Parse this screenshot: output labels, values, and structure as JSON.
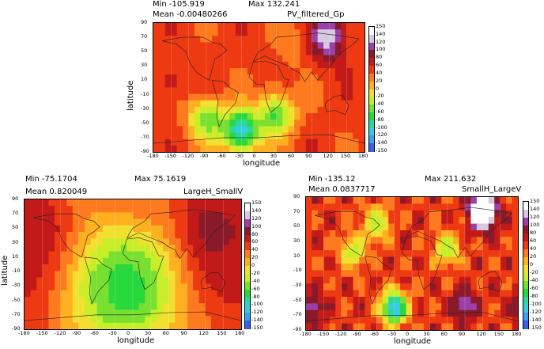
{
  "colorbar": {
    "ticks": [
      "150",
      "140",
      "120",
      "100",
      "80",
      "60",
      "40",
      "20",
      "0",
      "-20",
      "-40",
      "-60",
      "-80",
      "-100",
      "-120",
      "-140",
      "-150"
    ],
    "colors": [
      "#ffffff",
      "#d7c8e0",
      "#9b40a8",
      "#8a1a2a",
      "#c21a18",
      "#ee3a12",
      "#ff7a1e",
      "#ffb020",
      "#f2e030",
      "#c8ee2a",
      "#78e030",
      "#28d83c",
      "#2ad9a0",
      "#38cce0",
      "#3c9ef0",
      "#3a60e8"
    ]
  },
  "charts": [
    {
      "title": "PV_filtered_Gp",
      "min_text": "Min -105.919",
      "max_text": "Max 132.241",
      "mean_text": "Mean -0.00480266",
      "xlabel": "longitude",
      "ylabel": "latitude",
      "xticks": [
        "-180",
        "-150",
        "-120",
        "-90",
        "-60",
        "-30",
        "0",
        "30",
        "60",
        "90",
        "120",
        "150",
        "180"
      ],
      "yticks": [
        "90",
        "70",
        "50",
        "30",
        "10",
        "-10",
        "-30",
        "-50",
        "-70",
        "-90"
      ]
    },
    {
      "title": "LargeH_SmallV",
      "min_text": "Min -75.1704",
      "max_text": "Max 75.1619",
      "mean_text": "Mean 0.820049",
      "xlabel": "longitude",
      "ylabel": "latitude",
      "xticks": [
        "-180",
        "-150",
        "-120",
        "-90",
        "-60",
        "-30",
        "0",
        "30",
        "60",
        "90",
        "120",
        "150",
        "180"
      ],
      "yticks": [
        "90",
        "70",
        "50",
        "30",
        "10",
        "-10",
        "-30",
        "-50",
        "-70",
        "-90"
      ]
    },
    {
      "title": "SmallH_LargeV",
      "min_text": "Min -135.12",
      "max_text": "Max 211.632",
      "mean_text": "Mean 0.0837717",
      "xlabel": "longitude",
      "ylabel": "",
      "xticks": [
        "-180",
        "-150",
        "-120",
        "-90",
        "-60",
        "-30",
        "0",
        "30",
        "60",
        "90",
        "120",
        "150",
        "180"
      ],
      "yticks": [
        "90",
        "70",
        "50",
        "30",
        "10",
        "-10",
        "-30",
        "-50",
        "-70",
        "-90"
      ]
    }
  ],
  "chart_data": [
    {
      "type": "heatmap",
      "title": "PV_filtered_Gp",
      "xlabel": "longitude",
      "ylabel": "latitude",
      "xlim": [
        -180,
        180
      ],
      "ylim": [
        -90,
        90
      ],
      "zlim": [
        -150,
        150
      ],
      "stats": {
        "min": -105.919,
        "max": 132.241,
        "mean": -0.00480266
      },
      "features": [
        {
          "lon": 115,
          "lat": 70,
          "value": 130
        },
        {
          "lon": 60,
          "lat": 60,
          "value": 25
        },
        {
          "lon": -30,
          "lat": -60,
          "value": -100
        },
        {
          "lon": -90,
          "lat": -45,
          "value": -50
        },
        {
          "lon": 30,
          "lat": -40,
          "value": -55
        },
        {
          "lon": -150,
          "lat": 10,
          "value": 60
        },
        {
          "lon": 20,
          "lat": 20,
          "value": 45
        }
      ]
    },
    {
      "type": "heatmap",
      "title": "LargeH_SmallV",
      "xlabel": "longitude",
      "ylabel": "latitude",
      "xlim": [
        -180,
        180
      ],
      "ylim": [
        -90,
        90
      ],
      "zlim": [
        -150,
        150
      ],
      "stats": {
        "min": -75.1704,
        "max": 75.1619,
        "mean": 0.820049
      },
      "features": [
        {
          "lon": -10,
          "lat": -35,
          "value": -70
        },
        {
          "lon": 120,
          "lat": 60,
          "value": 70
        },
        {
          "lon": -150,
          "lat": 40,
          "value": 65
        },
        {
          "lon": 150,
          "lat": -10,
          "value": 60
        }
      ]
    },
    {
      "type": "heatmap",
      "title": "SmallH_LargeV",
      "xlabel": "longitude",
      "ylabel": "",
      "xlim": [
        -180,
        180
      ],
      "ylim": [
        -90,
        90
      ],
      "zlim": [
        -150,
        150
      ],
      "stats": {
        "min": -135.12,
        "max": 211.632,
        "mean": 0.0837717
      },
      "features": [
        {
          "lon": 120,
          "lat": 70,
          "value": 210
        },
        {
          "lon": -170,
          "lat": -60,
          "value": 100
        },
        {
          "lon": 90,
          "lat": -55,
          "value": 110
        },
        {
          "lon": -30,
          "lat": -60,
          "value": -120
        },
        {
          "lon": -60,
          "lat": 55,
          "value": -40
        },
        {
          "lon": 60,
          "lat": 20,
          "value": -40
        },
        {
          "lon": -100,
          "lat": 15,
          "value": -30
        }
      ]
    }
  ]
}
